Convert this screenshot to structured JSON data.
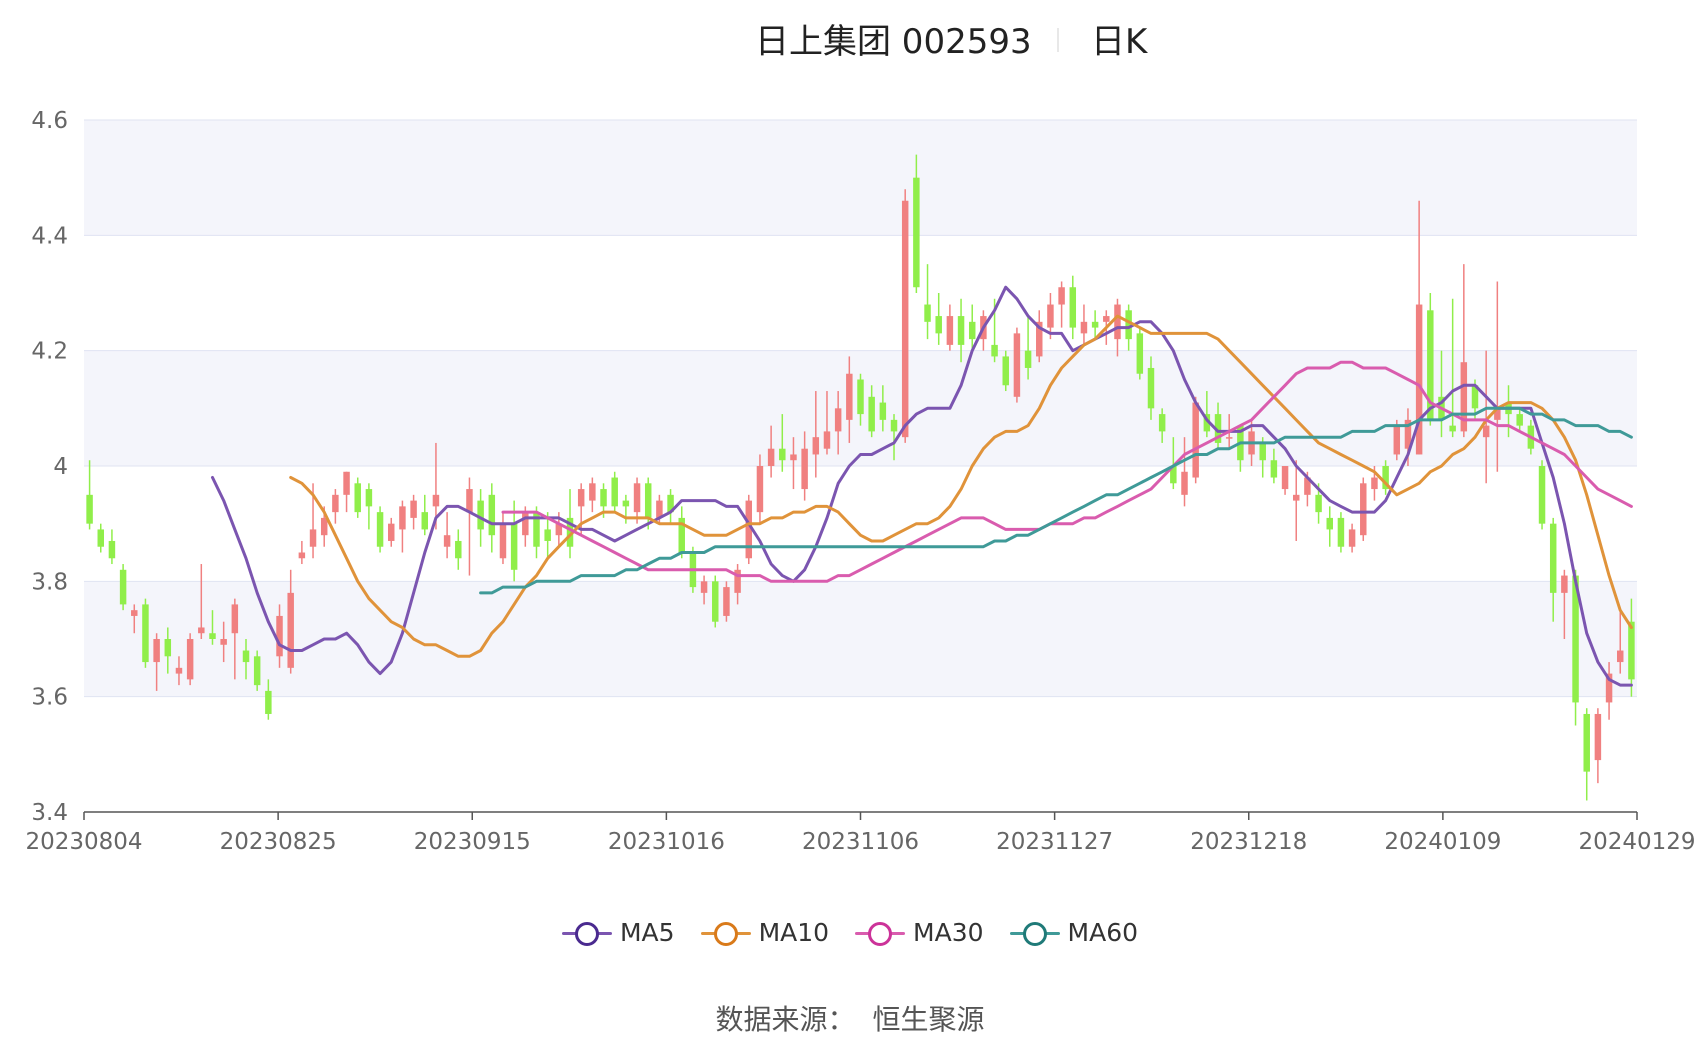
{
  "title": {
    "main": "日上集团 002593",
    "period": "日K"
  },
  "source": {
    "label": "数据来源：",
    "value": "恒生聚源"
  },
  "colors": {
    "up": "#f08080",
    "down": "#90ee4a",
    "ma5": "#7b55b0",
    "ma10": "#e0933a",
    "ma30": "#d95cae",
    "ma60": "#3f9a98",
    "grid": "#dfe3f2",
    "band": "#f4f5fb"
  },
  "chart_data": {
    "type": "candlestick",
    "ylim": [
      3.4,
      4.6
    ],
    "yticks": [
      "3.4",
      "3.6",
      "3.8",
      "4",
      "4.2",
      "4.4",
      "4.6"
    ],
    "xticks": [
      "20230804",
      "20230825",
      "20230915",
      "20231016",
      "20231106",
      "20231127",
      "20231218",
      "20240109",
      "20240129"
    ],
    "legend": [
      "MA5",
      "MA10",
      "MA30",
      "MA60"
    ],
    "legend_position": "bottom",
    "candles": [
      [
        3.95,
        3.9,
        4.01,
        3.89
      ],
      [
        3.89,
        3.86,
        3.9,
        3.85
      ],
      [
        3.87,
        3.84,
        3.89,
        3.83
      ],
      [
        3.82,
        3.76,
        3.83,
        3.75
      ],
      [
        3.74,
        3.75,
        3.76,
        3.71
      ],
      [
        3.76,
        3.66,
        3.77,
        3.65
      ],
      [
        3.66,
        3.7,
        3.71,
        3.61
      ],
      [
        3.7,
        3.67,
        3.72,
        3.64
      ],
      [
        3.64,
        3.65,
        3.67,
        3.62
      ],
      [
        3.63,
        3.7,
        3.71,
        3.62
      ],
      [
        3.71,
        3.72,
        3.83,
        3.7
      ],
      [
        3.71,
        3.7,
        3.75,
        3.69
      ],
      [
        3.69,
        3.7,
        3.73,
        3.66
      ],
      [
        3.71,
        3.76,
        3.77,
        3.63
      ],
      [
        3.68,
        3.66,
        3.7,
        3.63
      ],
      [
        3.67,
        3.62,
        3.68,
        3.61
      ],
      [
        3.61,
        3.57,
        3.63,
        3.56
      ],
      [
        3.67,
        3.74,
        3.76,
        3.65
      ],
      [
        3.65,
        3.78,
        3.82,
        3.64
      ],
      [
        3.84,
        3.85,
        3.87,
        3.83
      ],
      [
        3.86,
        3.89,
        3.97,
        3.84
      ],
      [
        3.88,
        3.91,
        3.93,
        3.86
      ],
      [
        3.92,
        3.95,
        3.96,
        3.9
      ],
      [
        3.95,
        3.99,
        3.99,
        3.92
      ],
      [
        3.97,
        3.92,
        3.98,
        3.91
      ],
      [
        3.96,
        3.93,
        3.97,
        3.89
      ],
      [
        3.92,
        3.86,
        3.93,
        3.85
      ],
      [
        3.87,
        3.9,
        3.91,
        3.86
      ],
      [
        3.89,
        3.93,
        3.94,
        3.85
      ],
      [
        3.91,
        3.94,
        3.95,
        3.89
      ],
      [
        3.92,
        3.89,
        3.95,
        3.88
      ],
      [
        3.93,
        3.95,
        4.04,
        3.89
      ],
      [
        3.86,
        3.88,
        3.92,
        3.84
      ],
      [
        3.87,
        3.84,
        3.89,
        3.82
      ],
      [
        3.92,
        3.96,
        3.98,
        3.81
      ],
      [
        3.94,
        3.89,
        3.96,
        3.86
      ],
      [
        3.95,
        3.88,
        3.97,
        3.85
      ],
      [
        3.84,
        3.9,
        3.92,
        3.83
      ],
      [
        3.9,
        3.82,
        3.94,
        3.8
      ],
      [
        3.88,
        3.92,
        3.93,
        3.86
      ],
      [
        3.92,
        3.86,
        3.93,
        3.84
      ],
      [
        3.89,
        3.87,
        3.92,
        3.84
      ],
      [
        3.88,
        3.9,
        3.92,
        3.86
      ],
      [
        3.91,
        3.86,
        3.96,
        3.84
      ],
      [
        3.93,
        3.96,
        3.97,
        3.88
      ],
      [
        3.94,
        3.97,
        3.98,
        3.92
      ],
      [
        3.96,
        3.93,
        3.97,
        3.91
      ],
      [
        3.98,
        3.93,
        3.99,
        3.92
      ],
      [
        3.94,
        3.93,
        3.95,
        3.9
      ],
      [
        3.92,
        3.97,
        3.98,
        3.9
      ],
      [
        3.97,
        3.91,
        3.98,
        3.89
      ],
      [
        3.91,
        3.94,
        3.95,
        3.9
      ],
      [
        3.95,
        3.92,
        3.96,
        3.9
      ],
      [
        3.91,
        3.85,
        3.93,
        3.84
      ],
      [
        3.85,
        3.79,
        3.86,
        3.78
      ],
      [
        3.78,
        3.8,
        3.81,
        3.76
      ],
      [
        3.8,
        3.73,
        3.81,
        3.72
      ],
      [
        3.74,
        3.79,
        3.8,
        3.73
      ],
      [
        3.78,
        3.82,
        3.83,
        3.76
      ],
      [
        3.84,
        3.94,
        3.95,
        3.83
      ],
      [
        3.92,
        4.0,
        4.02,
        3.9
      ],
      [
        4.0,
        4.03,
        4.07,
        3.98
      ],
      [
        4.03,
        4.01,
        4.09,
        3.99
      ],
      [
        4.01,
        4.02,
        4.05,
        3.96
      ],
      [
        3.96,
        4.03,
        4.06,
        3.94
      ],
      [
        4.02,
        4.05,
        4.13,
        3.98
      ],
      [
        4.03,
        4.06,
        4.13,
        4.02
      ],
      [
        4.06,
        4.1,
        4.13,
        4.02
      ],
      [
        4.08,
        4.16,
        4.19,
        4.04
      ],
      [
        4.15,
        4.09,
        4.16,
        4.07
      ],
      [
        4.12,
        4.06,
        4.14,
        4.05
      ],
      [
        4.11,
        4.08,
        4.14,
        4.06
      ],
      [
        4.08,
        4.06,
        4.09,
        4.01
      ],
      [
        4.05,
        4.46,
        4.48,
        4.04
      ],
      [
        4.5,
        4.31,
        4.54,
        4.3
      ],
      [
        4.28,
        4.25,
        4.35,
        4.22
      ],
      [
        4.26,
        4.23,
        4.3,
        4.21
      ],
      [
        4.21,
        4.26,
        4.28,
        4.2
      ],
      [
        4.26,
        4.21,
        4.29,
        4.18
      ],
      [
        4.25,
        4.22,
        4.28,
        4.2
      ],
      [
        4.22,
        4.26,
        4.27,
        4.2
      ],
      [
        4.21,
        4.19,
        4.29,
        4.18
      ],
      [
        4.19,
        4.14,
        4.2,
        4.13
      ],
      [
        4.12,
        4.23,
        4.24,
        4.11
      ],
      [
        4.2,
        4.17,
        4.26,
        4.15
      ],
      [
        4.19,
        4.25,
        4.27,
        4.18
      ],
      [
        4.24,
        4.28,
        4.3,
        4.22
      ],
      [
        4.28,
        4.31,
        4.32,
        4.24
      ],
      [
        4.31,
        4.24,
        4.33,
        4.22
      ],
      [
        4.23,
        4.25,
        4.28,
        4.21
      ],
      [
        4.25,
        4.24,
        4.27,
        4.22
      ],
      [
        4.25,
        4.26,
        4.27,
        4.21
      ],
      [
        4.22,
        4.28,
        4.29,
        4.19
      ],
      [
        4.27,
        4.22,
        4.28,
        4.2
      ],
      [
        4.23,
        4.16,
        4.24,
        4.15
      ],
      [
        4.17,
        4.1,
        4.19,
        4.08
      ],
      [
        4.09,
        4.06,
        4.1,
        4.04
      ],
      [
        4.0,
        3.97,
        4.05,
        3.96
      ],
      [
        3.95,
        3.99,
        4.05,
        3.93
      ],
      [
        3.98,
        4.11,
        4.12,
        3.97
      ],
      [
        4.09,
        4.06,
        4.13,
        4.05
      ],
      [
        4.09,
        4.04,
        4.11,
        4.03
      ],
      [
        4.05,
        4.05,
        4.09,
        4.03
      ],
      [
        4.07,
        4.01,
        4.07,
        3.99
      ],
      [
        4.02,
        4.06,
        4.08,
        4.0
      ],
      [
        4.04,
        4.01,
        4.05,
        3.98
      ],
      [
        4.01,
        3.98,
        4.03,
        3.97
      ],
      [
        3.96,
        4.0,
        4.0,
        3.95
      ],
      [
        3.94,
        3.95,
        4.01,
        3.87
      ],
      [
        3.95,
        3.98,
        3.99,
        3.93
      ],
      [
        3.95,
        3.92,
        3.97,
        3.9
      ],
      [
        3.91,
        3.89,
        3.93,
        3.86
      ],
      [
        3.91,
        3.86,
        3.92,
        3.85
      ],
      [
        3.86,
        3.89,
        3.9,
        3.85
      ],
      [
        3.88,
        3.97,
        3.98,
        3.87
      ],
      [
        3.96,
        3.98,
        4.0,
        3.94
      ],
      [
        4.0,
        3.96,
        4.01,
        3.95
      ],
      [
        4.02,
        4.07,
        4.08,
        4.01
      ],
      [
        4.03,
        4.08,
        4.1,
        4.0
      ],
      [
        4.02,
        4.28,
        4.46,
        4.02
      ],
      [
        4.27,
        4.08,
        4.3,
        4.07
      ],
      [
        4.12,
        4.08,
        4.2,
        4.05
      ],
      [
        4.07,
        4.06,
        4.29,
        4.05
      ],
      [
        4.06,
        4.18,
        4.35,
        4.05
      ],
      [
        4.14,
        4.1,
        4.15,
        4.08
      ],
      [
        4.05,
        4.07,
        4.2,
        3.97
      ],
      [
        4.08,
        4.1,
        4.32,
        3.99
      ],
      [
        4.11,
        4.09,
        4.14,
        4.05
      ],
      [
        4.09,
        4.07,
        4.1,
        4.06
      ],
      [
        4.07,
        4.03,
        4.08,
        4.02
      ],
      [
        4.0,
        3.9,
        4.01,
        3.89
      ],
      [
        3.9,
        3.78,
        3.91,
        3.73
      ],
      [
        3.78,
        3.81,
        3.82,
        3.7
      ],
      [
        3.81,
        3.59,
        3.82,
        3.55
      ],
      [
        3.57,
        3.47,
        3.58,
        3.42
      ],
      [
        3.49,
        3.57,
        3.58,
        3.45
      ],
      [
        3.59,
        3.64,
        3.66,
        3.56
      ],
      [
        3.66,
        3.68,
        3.75,
        3.64
      ],
      [
        3.73,
        3.63,
        3.77,
        3.6
      ]
    ],
    "series": [
      {
        "name": "MA5",
        "values": [
          3.98,
          3.94,
          3.89,
          3.84,
          3.78,
          3.73,
          3.69,
          3.68,
          3.68,
          3.69,
          3.7,
          3.7,
          3.71,
          3.69,
          3.66,
          3.64,
          3.66,
          3.71,
          3.78,
          3.85,
          3.91,
          3.93,
          3.93,
          3.92,
          3.91,
          3.9,
          3.9,
          3.9,
          3.91,
          3.91,
          3.91,
          3.91,
          3.9,
          3.89,
          3.89,
          3.88,
          3.87,
          3.88,
          3.89,
          3.9,
          3.91,
          3.92,
          3.94,
          3.94,
          3.94,
          3.94,
          3.93,
          3.93,
          3.9,
          3.87,
          3.83,
          3.81,
          3.8,
          3.82,
          3.86,
          3.91,
          3.97,
          4.0,
          4.02,
          4.02,
          4.03,
          4.04,
          4.07,
          4.09,
          4.1,
          4.1,
          4.1,
          4.14,
          4.2,
          4.24,
          4.27,
          4.31,
          4.29,
          4.26,
          4.24,
          4.23,
          4.23,
          4.2,
          4.21,
          4.22,
          4.23,
          4.24,
          4.24,
          4.25,
          4.25,
          4.23,
          4.2,
          4.15,
          4.11,
          4.08,
          4.06,
          4.06,
          4.06,
          4.07,
          4.07,
          4.05,
          4.03,
          4.0,
          3.98,
          3.96,
          3.94,
          3.93,
          3.92,
          3.92,
          3.92,
          3.94,
          3.98,
          4.02,
          4.08,
          4.1,
          4.11,
          4.13,
          4.14,
          4.14,
          4.12,
          4.1,
          4.1,
          4.1,
          4.1,
          4.04,
          3.98,
          3.9,
          3.8,
          3.71,
          3.66,
          3.63,
          3.62,
          3.62
        ]
      },
      {
        "name": "MA10",
        "values": [
          3.98,
          3.97,
          3.95,
          3.92,
          3.88,
          3.84,
          3.8,
          3.77,
          3.75,
          3.73,
          3.72,
          3.7,
          3.69,
          3.69,
          3.68,
          3.67,
          3.67,
          3.68,
          3.71,
          3.73,
          3.76,
          3.79,
          3.81,
          3.84,
          3.86,
          3.88,
          3.9,
          3.91,
          3.92,
          3.92,
          3.91,
          3.91,
          3.91,
          3.9,
          3.9,
          3.9,
          3.89,
          3.88,
          3.88,
          3.88,
          3.89,
          3.9,
          3.9,
          3.91,
          3.91,
          3.92,
          3.92,
          3.93,
          3.93,
          3.92,
          3.9,
          3.88,
          3.87,
          3.87,
          3.88,
          3.89,
          3.9,
          3.9,
          3.91,
          3.93,
          3.96,
          4.0,
          4.03,
          4.05,
          4.06,
          4.06,
          4.07,
          4.1,
          4.14,
          4.17,
          4.19,
          4.21,
          4.22,
          4.24,
          4.26,
          4.25,
          4.24,
          4.23,
          4.23,
          4.23,
          4.23,
          4.23,
          4.23,
          4.22,
          4.2,
          4.18,
          4.16,
          4.14,
          4.12,
          4.1,
          4.08,
          4.06,
          4.04,
          4.03,
          4.02,
          4.01,
          4.0,
          3.99,
          3.97,
          3.95,
          3.96,
          3.97,
          3.99,
          4.0,
          4.02,
          4.03,
          4.05,
          4.08,
          4.1,
          4.11,
          4.11,
          4.11,
          4.1,
          4.08,
          4.05,
          4.01,
          3.95,
          3.88,
          3.81,
          3.75,
          3.72
        ]
      },
      {
        "name": "MA30",
        "values": [
          3.92,
          3.92,
          3.92,
          3.92,
          3.91,
          3.9,
          3.89,
          3.88,
          3.87,
          3.86,
          3.85,
          3.84,
          3.83,
          3.82,
          3.82,
          3.82,
          3.82,
          3.82,
          3.82,
          3.82,
          3.82,
          3.81,
          3.81,
          3.81,
          3.8,
          3.8,
          3.8,
          3.8,
          3.8,
          3.8,
          3.81,
          3.81,
          3.82,
          3.83,
          3.84,
          3.85,
          3.86,
          3.87,
          3.88,
          3.89,
          3.9,
          3.91,
          3.91,
          3.91,
          3.9,
          3.89,
          3.89,
          3.89,
          3.89,
          3.9,
          3.9,
          3.9,
          3.91,
          3.91,
          3.92,
          3.93,
          3.94,
          3.95,
          3.96,
          3.98,
          4.0,
          4.02,
          4.03,
          4.04,
          4.05,
          4.06,
          4.07,
          4.08,
          4.1,
          4.12,
          4.14,
          4.16,
          4.17,
          4.17,
          4.17,
          4.18,
          4.18,
          4.17,
          4.17,
          4.17,
          4.16,
          4.15,
          4.14,
          4.11,
          4.1,
          4.09,
          4.08,
          4.08,
          4.08,
          4.07,
          4.07,
          4.06,
          4.05,
          4.04,
          4.03,
          4.02,
          4.0,
          3.98,
          3.96,
          3.95,
          3.94,
          3.93
        ]
      },
      {
        "name": "MA60",
        "values": [
          3.78,
          3.78,
          3.79,
          3.79,
          3.79,
          3.8,
          3.8,
          3.8,
          3.8,
          3.81,
          3.81,
          3.81,
          3.81,
          3.82,
          3.82,
          3.83,
          3.84,
          3.84,
          3.85,
          3.85,
          3.85,
          3.86,
          3.86,
          3.86,
          3.86,
          3.86,
          3.86,
          3.86,
          3.86,
          3.86,
          3.86,
          3.86,
          3.86,
          3.86,
          3.86,
          3.86,
          3.86,
          3.86,
          3.86,
          3.86,
          3.86,
          3.86,
          3.86,
          3.86,
          3.86,
          3.86,
          3.87,
          3.87,
          3.88,
          3.88,
          3.89,
          3.9,
          3.91,
          3.92,
          3.93,
          3.94,
          3.95,
          3.95,
          3.96,
          3.97,
          3.98,
          3.99,
          4.0,
          4.01,
          4.02,
          4.02,
          4.03,
          4.03,
          4.04,
          4.04,
          4.04,
          4.04,
          4.05,
          4.05,
          4.05,
          4.05,
          4.05,
          4.05,
          4.06,
          4.06,
          4.06,
          4.07,
          4.07,
          4.07,
          4.08,
          4.08,
          4.08,
          4.09,
          4.09,
          4.09,
          4.1,
          4.1,
          4.1,
          4.1,
          4.09,
          4.09,
          4.08,
          4.08,
          4.07,
          4.07,
          4.07,
          4.06,
          4.06,
          4.05
        ]
      }
    ]
  }
}
